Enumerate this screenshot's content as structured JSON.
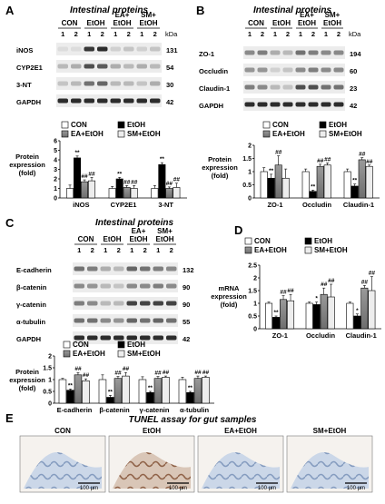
{
  "panels": {
    "A": {
      "letter": "A",
      "title": "Intestinal proteins",
      "groups": [
        "CON",
        "EtOH",
        "EA+\nEtOH",
        "SM+\nEtOH"
      ],
      "lanes": [
        "1",
        "2",
        "1",
        "2",
        "1",
        "2",
        "1",
        "2"
      ],
      "kda_label": "kDa",
      "rows": [
        {
          "name": "iNOS",
          "kda": "131"
        },
        {
          "name": "CYP2E1",
          "kda": "54"
        },
        {
          "name": "3-NT",
          "kda": "30"
        },
        {
          "name": "GAPDH",
          "kda": "42"
        }
      ]
    },
    "B": {
      "letter": "B",
      "title": "Intestinal proteins",
      "groups": [
        "CON",
        "EtOH",
        "EA+\nEtOH",
        "SM+\nEtOH"
      ],
      "lanes": [
        "1",
        "2",
        "1",
        "2",
        "1",
        "2",
        "1",
        "2"
      ],
      "kda_label": "kDa",
      "rows": [
        {
          "name": "ZO-1",
          "kda": "194"
        },
        {
          "name": "Occludin",
          "kda": "60"
        },
        {
          "name": "Claudin-1",
          "kda": "23"
        },
        {
          "name": "GAPDH",
          "kda": "42"
        }
      ]
    },
    "C": {
      "letter": "C",
      "title": "Intestinal proteins",
      "groups": [
        "CON",
        "EtOH",
        "EA+\nEtOH",
        "SM+\nEtOH"
      ],
      "lanes": [
        "1",
        "2",
        "1",
        "2",
        "1",
        "2",
        "1",
        "2"
      ],
      "rows": [
        {
          "name": "E-cadherin",
          "kda": "132"
        },
        {
          "name": "β-catenin",
          "kda": "90"
        },
        {
          "name": "γ-catenin",
          "kda": "90"
        },
        {
          "name": "α-tubulin",
          "kda": "55"
        },
        {
          "name": "GAPDH",
          "kda": "42"
        }
      ]
    },
    "D": {
      "letter": "D"
    },
    "E": {
      "letter": "E",
      "title": "TUNEL assay for gut samples",
      "images": [
        {
          "label": "CON",
          "scale": "100 µm"
        },
        {
          "label": "EtOH",
          "scale": "100 µm"
        },
        {
          "label": "EA+EtOH",
          "scale": "100 µm"
        },
        {
          "label": "SM+EtOH",
          "scale": "100 µm"
        }
      ]
    }
  },
  "chart_data": [
    {
      "type": "bar",
      "panel": "A",
      "ylabel": "Protein\nexpression\n(fold)",
      "ylim": [
        0,
        6
      ],
      "yticks": [
        "0",
        "1",
        "2",
        "3",
        "4",
        "5",
        "6"
      ],
      "categories": [
        "iNOS",
        "CYP2E1",
        "3-NT"
      ],
      "legend": [
        "CON",
        "EtOH",
        "EA+EtOH",
        "SM+EtOH"
      ],
      "series": [
        {
          "name": "CON",
          "values": [
            1.0,
            1.0,
            1.0
          ],
          "errors": [
            0.35,
            0.2,
            0.3
          ]
        },
        {
          "name": "EtOH",
          "values": [
            4.2,
            2.0,
            3.5
          ],
          "errors": [
            0.2,
            0.15,
            0.2
          ]
        },
        {
          "name": "EA+EtOH",
          "values": [
            1.7,
            1.1,
            1.0
          ],
          "errors": [
            0.2,
            0.2,
            0.15
          ]
        },
        {
          "name": "SM+EtOH",
          "values": [
            1.8,
            1.0,
            1.1
          ],
          "errors": [
            0.35,
            0.3,
            0.45
          ]
        }
      ],
      "annotations": [
        [
          "",
          "**",
          "##",
          "##"
        ],
        [
          "",
          "**",
          "##",
          "##"
        ],
        [
          "",
          "**",
          "##",
          "##"
        ]
      ]
    },
    {
      "type": "bar",
      "panel": "B",
      "ylabel": "Protein\nexpression\n(fold)",
      "ylim": [
        0,
        2
      ],
      "yticks": [
        "0",
        "0.5",
        "1",
        "1.5",
        "2"
      ],
      "categories": [
        "ZO-1",
        "Occludin",
        "Claudin-1"
      ],
      "legend": [
        "CON",
        "EtOH",
        "EA+EtOH",
        "SM+EtOH"
      ],
      "series": [
        {
          "name": "CON",
          "values": [
            1.0,
            1.0,
            1.0
          ],
          "errors": [
            0.15,
            0.1,
            0.1
          ]
        },
        {
          "name": "EtOH",
          "values": [
            0.75,
            0.25,
            0.45
          ],
          "errors": [
            0.15,
            0.05,
            0.08
          ]
        },
        {
          "name": "EA+EtOH",
          "values": [
            1.25,
            1.2,
            1.45
          ],
          "errors": [
            0.35,
            0.08,
            0.08
          ]
        },
        {
          "name": "SM+EtOH",
          "values": [
            0.75,
            1.25,
            1.2
          ],
          "errors": [
            0.35,
            0.08,
            0.05
          ]
        }
      ],
      "annotations": [
        [
          "",
          "**",
          "##",
          ""
        ],
        [
          "",
          "**",
          "##",
          "##"
        ],
        [
          "",
          "**",
          "##",
          "##"
        ]
      ]
    },
    {
      "type": "bar",
      "panel": "C",
      "ylabel": "Protein\nexpression\n(fold)",
      "ylim": [
        0,
        2
      ],
      "yticks": [
        "0",
        "0.5",
        "1",
        "1.5",
        "2"
      ],
      "categories": [
        "E-cadherin",
        "β-catenin",
        "γ-catenin",
        "α-tubulin"
      ],
      "legend": [
        "CON",
        "EtOH",
        "EA+EtOH",
        "SM+EtOH"
      ],
      "series": [
        {
          "name": "CON",
          "values": [
            1.0,
            1.0,
            1.0,
            1.0
          ],
          "errors": [
            0.05,
            0.2,
            0.12,
            0.1
          ]
        },
        {
          "name": "EtOH",
          "values": [
            0.55,
            0.25,
            0.45,
            0.45
          ],
          "errors": [
            0.05,
            0.08,
            0.05,
            0.05
          ]
        },
        {
          "name": "EA+EtOH",
          "values": [
            1.2,
            1.05,
            1.05,
            1.05
          ],
          "errors": [
            0.1,
            0.08,
            0.08,
            0.1
          ]
        },
        {
          "name": "SM+EtOH",
          "values": [
            0.95,
            1.15,
            1.1,
            1.1
          ],
          "errors": [
            0.08,
            0.15,
            0.05,
            0.05
          ]
        }
      ],
      "annotations": [
        [
          "",
          "**",
          "##",
          "##"
        ],
        [
          "",
          "**",
          "##",
          "##"
        ],
        [
          "",
          "**",
          "##",
          "##"
        ],
        [
          "",
          "**",
          "##",
          "##"
        ]
      ]
    },
    {
      "type": "bar",
      "panel": "D",
      "ylabel": "mRNA\nexpression\n(fold)",
      "ylim": [
        0,
        2.5
      ],
      "yticks": [
        "0",
        "0.5",
        "1",
        "1.5",
        "2",
        "2.5"
      ],
      "categories": [
        "ZO-1",
        "Occludin",
        "Claudin-1"
      ],
      "legend": [
        "CON",
        "EtOH",
        "EA+EtOH",
        "SM+EtOH"
      ],
      "series": [
        {
          "name": "CON",
          "values": [
            1.0,
            1.0,
            1.0
          ],
          "errors": [
            0.05,
            0.05,
            0.05
          ]
        },
        {
          "name": "EtOH",
          "values": [
            0.45,
            0.95,
            0.5
          ],
          "errors": [
            0.05,
            0.1,
            0.08
          ]
        },
        {
          "name": "EA+EtOH",
          "values": [
            1.15,
            1.35,
            1.6
          ],
          "errors": [
            0.15,
            0.25,
            0.1
          ]
        },
        {
          "name": "SM+EtOH",
          "values": [
            1.1,
            1.25,
            1.5
          ],
          "errors": [
            0.25,
            0.5,
            0.55
          ]
        }
      ],
      "annotations": [
        [
          "",
          "**",
          "##",
          "##"
        ],
        [
          "",
          "*",
          "##",
          "##"
        ],
        [
          "",
          "*",
          "##",
          "##"
        ]
      ]
    }
  ]
}
